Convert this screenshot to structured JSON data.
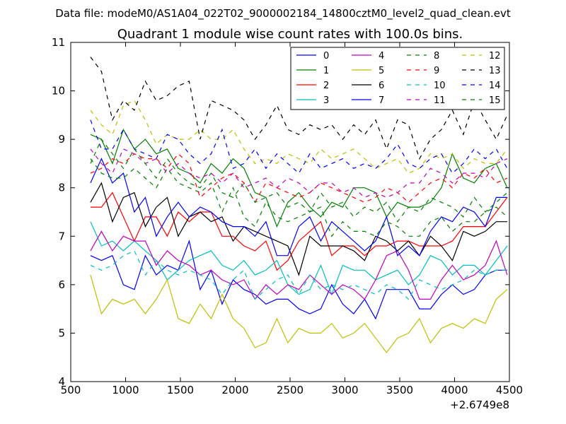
{
  "figure": {
    "suptitle": "Data file: modeM0/AS1A04_022T02_9000002184_14800cztM0_level2_quad_clean.evt"
  },
  "chart_data": {
    "type": "line",
    "title": "Quadrant 1 module wise count rates with 100.0s bins.",
    "xlabel": "",
    "ylabel": "",
    "xlim": [
      500,
      4500
    ],
    "ylim": [
      4,
      11
    ],
    "x_offset_label": "+2.6749e8",
    "xticks": [
      "500",
      "1000",
      "1500",
      "2000",
      "2500",
      "3000",
      "3500",
      "4000",
      "4500"
    ],
    "yticks": [
      "4",
      "5",
      "6",
      "7",
      "8",
      "9",
      "10",
      "11"
    ],
    "grid": false,
    "legend_position": "top-right",
    "legend_columns": 4,
    "x": [
      680,
      780,
      880,
      980,
      1080,
      1180,
      1280,
      1380,
      1480,
      1580,
      1680,
      1780,
      1880,
      1980,
      2080,
      2180,
      2280,
      2380,
      2480,
      2580,
      2680,
      2780,
      2880,
      2980,
      3080,
      3180,
      3280,
      3380,
      3480,
      3580,
      3680,
      3780,
      3880,
      3980,
      4080,
      4180,
      4280,
      4380,
      4480
    ],
    "series": [
      {
        "name": "0",
        "color": "#0000ff",
        "dash": "solid",
        "values": [
          6.6,
          6.5,
          6.6,
          6.0,
          5.9,
          6.6,
          6.2,
          6.4,
          6.3,
          6.9,
          5.9,
          6.3,
          5.6,
          6.1,
          5.9,
          5.8,
          5.6,
          5.7,
          5.7,
          5.5,
          5.4,
          5.5,
          6.0,
          5.6,
          5.4,
          5.7,
          5.3,
          5.9,
          5.9,
          5.9,
          5.5,
          5.5,
          5.8,
          6.0,
          5.8,
          5.9,
          6.2,
          6.3,
          6.3
        ]
      },
      {
        "name": "1",
        "color": "#008000",
        "dash": "solid",
        "values": [
          9.1,
          9.0,
          8.5,
          9.2,
          8.8,
          9.0,
          8.7,
          8.8,
          8.4,
          8.3,
          8.1,
          8.5,
          8.3,
          8.6,
          8.4,
          7.9,
          7.8,
          7.2,
          7.7,
          7.9,
          7.6,
          7.4,
          7.7,
          7.6,
          8.0,
          8.0,
          7.9,
          7.4,
          7.7,
          7.6,
          7.6,
          7.7,
          8.0,
          8.7,
          8.2,
          8.1,
          8.4,
          8.5,
          8.0
        ]
      },
      {
        "name": "2",
        "color": "#ff0000",
        "dash": "solid",
        "values": [
          7.6,
          7.6,
          7.9,
          7.4,
          6.9,
          7.4,
          7.4,
          7.0,
          7.5,
          7.3,
          7.5,
          7.5,
          7.0,
          7.0,
          6.8,
          6.7,
          6.9,
          6.3,
          6.5,
          6.9,
          7.1,
          7.3,
          6.6,
          6.8,
          6.8,
          6.6,
          6.8,
          6.8,
          6.9,
          6.9,
          6.8,
          6.8,
          6.8,
          6.9,
          7.2,
          7.2,
          7.2,
          7.5,
          7.8
        ]
      },
      {
        "name": "3",
        "color": "#00bfbf",
        "dash": "solid",
        "values": [
          7.3,
          6.8,
          6.9,
          6.7,
          6.9,
          6.7,
          6.5,
          6.1,
          6.3,
          6.5,
          6.6,
          6.7,
          6.4,
          6.3,
          6.5,
          6.2,
          6.3,
          6.5,
          6.0,
          5.8,
          5.9,
          6.4,
          5.8,
          6.4,
          6.3,
          6.3,
          6.1,
          6.2,
          6.3,
          6.0,
          6.2,
          6.6,
          6.5,
          6.2,
          6.4,
          6.4,
          6.2,
          6.5,
          6.8
        ]
      },
      {
        "name": "4",
        "color": "#bf00bf",
        "dash": "solid",
        "values": [
          6.7,
          7.1,
          6.7,
          7.0,
          6.9,
          6.9,
          6.4,
          6.7,
          6.5,
          6.4,
          6.2,
          6.3,
          6.1,
          6.0,
          6.1,
          5.7,
          6.0,
          5.8,
          6.0,
          5.9,
          6.2,
          6.0,
          5.8,
          6.0,
          5.9,
          5.7,
          6.1,
          6.6,
          6.7,
          6.3,
          5.7,
          5.7,
          6.1,
          6.4,
          6.1,
          6.2,
          6.4,
          6.9,
          6.2
        ]
      },
      {
        "name": "5",
        "color": "#bfbf00",
        "dash": "solid",
        "values": [
          6.2,
          5.4,
          5.7,
          5.6,
          5.7,
          5.4,
          5.7,
          6.1,
          5.3,
          5.2,
          5.6,
          5.3,
          5.8,
          5.3,
          5.1,
          4.7,
          4.8,
          5.3,
          4.8,
          5.1,
          5.0,
          5.0,
          5.2,
          4.9,
          5.0,
          5.2,
          4.9,
          4.6,
          4.9,
          5.0,
          5.3,
          4.8,
          5.1,
          5.2,
          5.1,
          5.3,
          5.2,
          5.7,
          5.9
        ]
      },
      {
        "name": "6",
        "color": "#000000",
        "dash": "solid",
        "values": [
          7.7,
          8.1,
          7.3,
          7.8,
          7.9,
          7.2,
          7.6,
          7.8,
          7.0,
          7.4,
          7.5,
          7.3,
          7.4,
          6.9,
          7.2,
          7.1,
          7.0,
          6.9,
          6.8,
          6.2,
          7.0,
          6.8,
          6.8,
          6.8,
          6.7,
          6.5,
          7.0,
          6.9,
          6.7,
          6.9,
          6.6,
          7.0,
          6.8,
          6.5,
          7.1,
          7.0,
          7.1,
          7.3,
          7.3
        ]
      },
      {
        "name": "7",
        "color": "#0000ff",
        "dash": "solid",
        "values": [
          8.1,
          8.6,
          8.1,
          8.3,
          7.5,
          7.8,
          7.0,
          7.4,
          7.7,
          7.4,
          7.6,
          7.5,
          7.3,
          7.2,
          7.2,
          7.0,
          7.3,
          6.6,
          6.6,
          7.2,
          7.4,
          6.9,
          7.3,
          7.1,
          6.9,
          6.7,
          6.9,
          7.4,
          6.6,
          6.8,
          6.6,
          7.1,
          7.4,
          7.3,
          7.6,
          7.5,
          7.2,
          7.8,
          7.8
        ]
      },
      {
        "name": "8",
        "color": "#008000",
        "dash": "dashed",
        "values": [
          8.6,
          8.3,
          8.2,
          8.2,
          8.4,
          8.2,
          8.0,
          8.4,
          8.1,
          8.0,
          7.9,
          8.1,
          7.5,
          8.0,
          7.4,
          7.2,
          7.7,
          7.4,
          7.3,
          7.4,
          7.5,
          7.6,
          7.0,
          7.3,
          7.1,
          7.1,
          7.0,
          7.3,
          7.2,
          7.0,
          7.0,
          7.3,
          7.4,
          7.1,
          7.3,
          7.3,
          7.5,
          7.6,
          7.4
        ]
      },
      {
        "name": "9",
        "color": "#ff0000",
        "dash": "dashed",
        "values": [
          8.3,
          8.4,
          8.6,
          8.5,
          8.7,
          8.6,
          8.6,
          8.4,
          8.7,
          8.5,
          7.8,
          8.0,
          8.2,
          8.3,
          8.1,
          7.7,
          8.1,
          8.0,
          7.9,
          7.8,
          7.9,
          8.1,
          8.0,
          7.9,
          7.8,
          7.7,
          7.8,
          8.0,
          7.9,
          7.7,
          7.9,
          8.1,
          8.2,
          8.0,
          8.3,
          8.2,
          8.4,
          8.1,
          8.2
        ]
      },
      {
        "name": "10",
        "color": "#00bfbf",
        "dash": "dashed",
        "values": [
          6.4,
          6.3,
          6.4,
          6.6,
          6.7,
          6.2,
          6.5,
          6.3,
          6.2,
          6.3,
          6.2,
          6.1,
          5.8,
          6.1,
          6.3,
          5.7,
          5.9,
          6.1,
          6.2,
          5.8,
          6.2,
          5.9,
          6.0,
          5.9,
          6.0,
          5.9,
          5.8,
          6.0,
          5.9,
          5.7,
          6.1,
          6.0,
          5.9,
          6.0,
          6.1,
          6.3,
          6.2,
          6.3,
          6.3
        ]
      },
      {
        "name": "11",
        "color": "#bf00bf",
        "dash": "dashed",
        "values": [
          8.8,
          8.5,
          8.3,
          8.8,
          8.7,
          8.5,
          8.6,
          8.3,
          8.5,
          8.3,
          8.2,
          8.3,
          8.1,
          8.3,
          8.0,
          8.1,
          8.2,
          8.0,
          8.2,
          8.1,
          7.9,
          8.1,
          8.1,
          7.9,
          8.0,
          7.8,
          7.9,
          7.8,
          7.9,
          8.1,
          8.1,
          8.4,
          8.3,
          8.1,
          8.3,
          8.3,
          8.2,
          8.5,
          8.6
        ]
      },
      {
        "name": "12",
        "color": "#bfbf00",
        "dash": "dashed",
        "values": [
          9.6,
          9.3,
          9.1,
          9.7,
          9.8,
          9.4,
          8.9,
          9.1,
          9.0,
          9.0,
          9.2,
          9.0,
          9.0,
          9.2,
          8.8,
          8.5,
          8.6,
          8.5,
          8.7,
          8.6,
          8.5,
          8.8,
          8.6,
          8.7,
          8.8,
          8.6,
          8.4,
          8.5,
          8.6,
          8.3,
          8.4,
          8.7,
          8.6,
          8.7,
          8.4,
          8.6,
          8.5,
          8.5,
          8.8
        ]
      },
      {
        "name": "13",
        "color": "#000000",
        "dash": "dashed",
        "values": [
          10.7,
          10.4,
          9.4,
          9.8,
          9.6,
          10.2,
          9.8,
          9.9,
          10.1,
          10.2,
          9.0,
          9.8,
          9.7,
          9.6,
          9.4,
          9.0,
          9.3,
          9.7,
          9.2,
          9.1,
          9.3,
          9.2,
          9.3,
          9.0,
          9.3,
          9.1,
          9.4,
          8.8,
          9.4,
          9.3,
          8.6,
          9.0,
          9.2,
          9.6,
          9.1,
          9.8,
          9.4,
          9.0,
          9.5
        ]
      },
      {
        "name": "14",
        "color": "#0000ff",
        "dash": "dashed",
        "values": [
          9.4,
          8.8,
          8.8,
          9.2,
          8.8,
          8.7,
          8.6,
          9.1,
          9.0,
          8.7,
          8.5,
          8.7,
          9.2,
          8.4,
          8.5,
          8.8,
          8.4,
          8.7,
          8.5,
          8.3,
          8.7,
          8.4,
          8.5,
          8.6,
          8.4,
          8.5,
          8.4,
          8.6,
          8.9,
          8.5,
          8.4,
          8.6,
          8.7,
          8.3,
          8.5,
          8.8,
          8.6,
          8.8,
          8.4
        ]
      },
      {
        "name": "15",
        "color": "#008000",
        "dash": "dashed",
        "values": [
          8.5,
          9.0,
          8.7,
          8.4,
          8.8,
          8.5,
          8.2,
          8.6,
          8.3,
          8.1,
          8.0,
          8.3,
          7.9,
          7.8,
          8.1,
          7.7,
          7.8,
          7.9,
          7.6,
          7.7,
          7.5,
          7.9,
          7.6,
          7.7,
          7.4,
          7.6,
          7.5,
          7.7,
          7.3,
          7.6,
          7.5,
          7.8,
          7.7,
          7.6,
          7.4,
          7.8,
          7.5,
          7.7,
          7.9
        ]
      }
    ]
  }
}
